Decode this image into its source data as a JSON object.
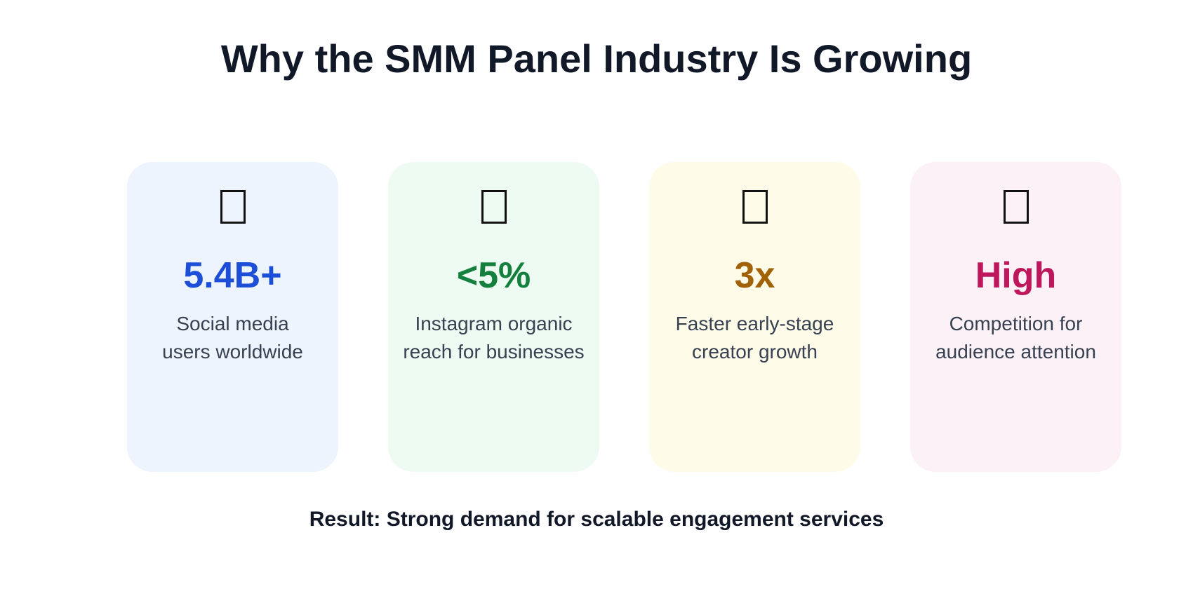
{
  "header": {
    "title": "Why the SMM Panel Industry Is Growing"
  },
  "cards": [
    {
      "icon": "missing-glyph-icon",
      "stat": "5.4B+",
      "description_line1": "Social media",
      "description_line2": "users worldwide",
      "background_color": "#eef4fe",
      "accent_color": "#1d4ed8"
    },
    {
      "icon": "missing-glyph-icon",
      "stat": "<5%",
      "description_line1": "Instagram organic",
      "description_line2": "reach for businesses",
      "background_color": "#edfbf2",
      "accent_color": "#15803d"
    },
    {
      "icon": "missing-glyph-icon",
      "stat": "3x",
      "description_line1": "Faster early-stage",
      "description_line2": "creator growth",
      "background_color": "#fefbe9",
      "accent_color": "#a16207"
    },
    {
      "icon": "missing-glyph-icon",
      "stat": "High",
      "description_line1": "Competition for",
      "description_line2": "audience attention",
      "background_color": "#fcf1f7",
      "accent_color": "#be185d"
    }
  ],
  "footer": {
    "result": "Result: Strong demand for scalable engagement services"
  },
  "colors": {
    "text_primary": "#111827",
    "text_secondary": "#374151"
  }
}
